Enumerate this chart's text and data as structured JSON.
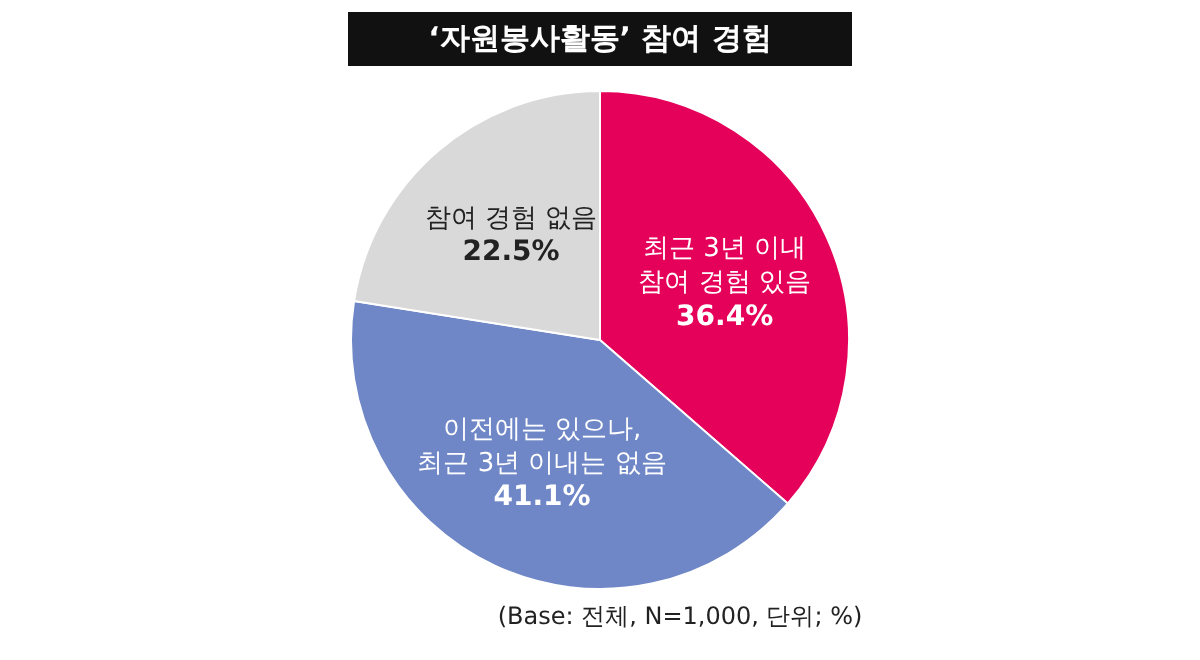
{
  "chart_data": {
    "type": "pie",
    "title": "‘자원봉사활동’ 참여 경험",
    "categories": [
      "최근 3년 이내\n참여 경험 있음",
      "이전에는 있으나,\n최근 3년 이내는 없음",
      "참여 경험 없음"
    ],
    "values": [
      36.4,
      41.1,
      22.5
    ],
    "colors": [
      "#e5005a",
      "#6f87c6",
      "#d9d9d9"
    ],
    "value_labels": [
      "36.4%",
      "41.1%",
      "22.5%"
    ],
    "annotations": [
      "(Base: 전체, N=1,000, 단위; %)"
    ],
    "legend": false
  }
}
